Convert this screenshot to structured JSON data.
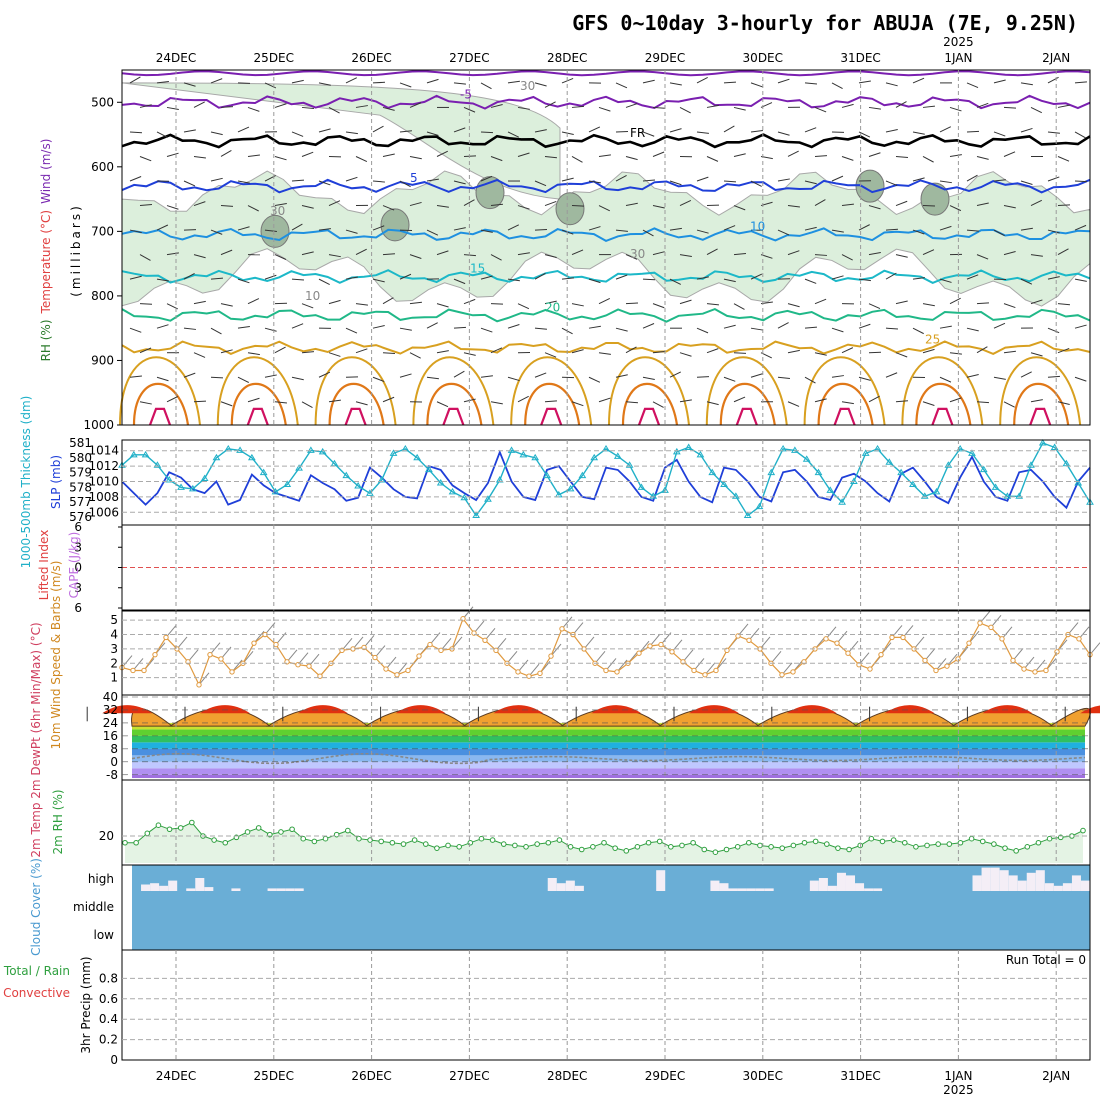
{
  "title": "GFS 0~10day 3-hourly for ABUJA (7E, 9.25N)",
  "year_label": "2025",
  "colors": {
    "rh_fill": "#dcefdc",
    "rh_dark": "#9fb89f",
    "rh_contour": "#a8a8a8",
    "freezing": "#000000",
    "t_neg5": "#7a1fb0",
    "t_5": "#1f3fd8",
    "t_10": "#1e90e0",
    "t_15": "#1cb8c8",
    "t_20": "#20b888",
    "t_25": "#d8a020",
    "t_30": "#e07818",
    "t_35": "#d01060",
    "slp": "#1f3fd8",
    "thickness": "#20b0c8",
    "wind_line": "#e09a40",
    "rh2m": "#30a040",
    "cloud_bg": "#6aaed6",
    "dewpoint": "#888888"
  },
  "chart_data": [
    {
      "id": "upper-air",
      "type": "contour",
      "ylabel_parts": [
        "RH (%)",
        "Temperature (°C)",
        "Wind (m/s)"
      ],
      "axis_title": "(millibars)",
      "ylim": [
        1000,
        450
      ],
      "yticks": [
        500,
        600,
        700,
        800,
        900,
        1000
      ],
      "days": [
        "24DEC",
        "25DEC",
        "26DEC",
        "27DEC",
        "28DEC",
        "29DEC",
        "30DEC",
        "31DEC",
        "1JAN",
        "2JAN"
      ],
      "isotherms": [
        {
          "value": -5,
          "label": "-5",
          "level_mb": 500
        },
        {
          "value": 0,
          "label": "FR",
          "level_mb": 560
        },
        {
          "value": 5,
          "label": "5",
          "level_mb": 630
        },
        {
          "value": 10,
          "label": "10",
          "level_mb": 705
        },
        {
          "value": 15,
          "label": "15",
          "level_mb": 770
        },
        {
          "value": 20,
          "label": "20",
          "level_mb": 830
        },
        {
          "value": 25,
          "label": "25",
          "level_mb": 880
        }
      ],
      "rh_labels": [
        "10",
        "30"
      ]
    },
    {
      "id": "slp-thickness",
      "type": "line",
      "ylabel_left": "1000-500mb Thickness (dm)",
      "ylabel_right": "SLP (mb)",
      "left_ticks": [
        576,
        577,
        578,
        579,
        580,
        581
      ],
      "right_ticks": [
        1006,
        1008,
        1010,
        1012,
        1014
      ],
      "series": [
        {
          "name": "SLP (mb)",
          "values": [
            1010,
            1008.5,
            1007,
            1008.5,
            1011.2,
            1010.5,
            1009,
            1008.5,
            1010,
            1007,
            1007.6,
            1010.9,
            1009.5,
            1008.5,
            1008,
            1007.5,
            1010.8,
            1009.8,
            1009,
            1007.5,
            1007.9,
            1011.8,
            1010.5,
            1009,
            1008,
            1007.8,
            1012,
            1011.5,
            1009.5,
            1008.5,
            1007.6,
            1009.8,
            1013.8,
            1010,
            1008,
            1007.6,
            1011.5,
            1012,
            1010,
            1008,
            1007.7,
            1011.8,
            1011.5,
            1010,
            1008,
            1007.5,
            1011.8,
            1012.8,
            1010,
            1008,
            1007.3,
            1011.8,
            1011.5,
            1010,
            1008,
            1007.4,
            1011.2,
            1011.5,
            1010,
            1008,
            1007.6,
            1010.5,
            1011,
            1010,
            1008.5,
            1007.4,
            1011,
            1011.8,
            1010,
            1008,
            1007.2,
            1010.5,
            1013.2,
            1010,
            1008,
            1007.5,
            1011.2,
            1011.5,
            1010,
            1008,
            1006.6,
            1010,
            1011.8
          ]
        },
        {
          "name": "1000-500mb Thickness (dm)",
          "values": [
            579.5,
            580.2,
            580.2,
            579.5,
            578.5,
            578,
            577.9,
            578.6,
            580,
            580.6,
            580.5,
            580,
            579,
            577.7,
            578.2,
            579.3,
            580.5,
            580.4,
            579.6,
            578.8,
            578.1,
            577.6,
            578.5,
            580.3,
            580.6,
            580,
            579.2,
            578.3,
            577.7,
            577.3,
            576.1,
            577.2,
            578.5,
            580.5,
            580.2,
            580,
            578.8,
            577.5,
            577.9,
            578.8,
            580,
            580.6,
            580.1,
            579.5,
            578,
            577.4,
            577.8,
            580.4,
            580.7,
            580.2,
            579,
            578.2,
            577.4,
            576.1,
            576.7,
            579,
            580.6,
            580.5,
            579.9,
            579,
            577.8,
            577,
            578.4,
            580.3,
            580.6,
            579.7,
            579,
            578.2,
            577.4,
            577.7,
            579.5,
            580.6,
            580.3,
            579.2,
            578,
            577.4,
            577.4,
            579.5,
            581,
            580.7,
            579.6,
            578.3,
            577
          ]
        }
      ]
    },
    {
      "id": "cape-li",
      "type": "line",
      "ylabel_left": "Lifted Index",
      "ylabel_right": "CAPE (J/kg)",
      "yticks": [
        -6,
        -3,
        0,
        3,
        6
      ],
      "tick_labels": [
        "6",
        "3",
        "0",
        "3",
        "6"
      ],
      "ylim": [
        -6,
        6
      ]
    },
    {
      "id": "wind10m",
      "type": "line",
      "ylabel": "10m Wind Speed & Barbs (m/s)",
      "yticks": [
        1,
        2,
        3,
        4,
        5
      ],
      "ylim": [
        0,
        5.5
      ],
      "series": [
        {
          "name": "10m Wind Speed",
          "values": [
            1.7,
            1.5,
            1.5,
            2.6,
            3.8,
            3,
            2.1,
            0.5,
            2.6,
            2.3,
            1.4,
            2,
            3.4,
            4,
            3.3,
            2.1,
            1.9,
            1.8,
            1.1,
            2,
            2.9,
            3,
            3.1,
            2.4,
            1.6,
            1.2,
            1.5,
            2.5,
            3.3,
            2.9,
            3,
            5.1,
            4.1,
            3.6,
            2.9,
            2,
            1.4,
            1.1,
            1.3,
            2.5,
            4.4,
            4,
            3,
            2,
            1.5,
            1.4,
            2,
            2.7,
            3.2,
            3.3,
            2.8,
            2.1,
            1.5,
            1.2,
            1.5,
            2.9,
            3.9,
            3.6,
            3,
            2,
            1.2,
            1.4,
            2.1,
            3,
            3.7,
            3.4,
            2.7,
            1.9,
            1.6,
            2.6,
            3.8,
            3.8,
            3,
            2.2,
            1.5,
            1.8,
            2.3,
            3.4,
            4.8,
            4.5,
            3.7,
            2.2,
            1.6,
            1.4,
            1.5,
            2.8,
            4,
            3.7,
            2.6
          ]
        }
      ]
    },
    {
      "id": "temp2m",
      "type": "area",
      "ylabel": "2m Temp 2m DewPt (6hr Min/Max) (°C)",
      "yticks": [
        -8,
        0,
        8,
        16,
        24,
        32,
        40
      ],
      "tick_labels": [
        "-8",
        "0",
        "8",
        "16",
        "24",
        "32",
        "40"
      ],
      "ylim": [
        -10,
        40
      ],
      "daily_max_c": 36,
      "daily_min_c": 22
    },
    {
      "id": "rh2m",
      "type": "area",
      "ylabel": "2m RH (%)",
      "yticks": [
        20
      ],
      "ylim": [
        0,
        60
      ],
      "series": [
        {
          "name": "2m RH (%)",
          "values": [
            15,
            15,
            22,
            28,
            25,
            26,
            30,
            20,
            17,
            15,
            19,
            23,
            26,
            21,
            23,
            25,
            18,
            16,
            18,
            21,
            24,
            18,
            17,
            16,
            15,
            14,
            17,
            14,
            11,
            13,
            12,
            15,
            18,
            17,
            14,
            13,
            12,
            14,
            15,
            17,
            12,
            10,
            12,
            15,
            11,
            9,
            12,
            15,
            16,
            12,
            13,
            15,
            10,
            8,
            10,
            12,
            15,
            13,
            12,
            11,
            13,
            15,
            16,
            14,
            11,
            10,
            13,
            18,
            16,
            17,
            15,
            12,
            13,
            14,
            14,
            15,
            18,
            16,
            14,
            11,
            9,
            12,
            15,
            18,
            19,
            20,
            24
          ]
        }
      ]
    },
    {
      "id": "cloud",
      "type": "bar",
      "ylabel": "Cloud Cover (%)",
      "levels": [
        "high",
        "middle",
        "low"
      ],
      "high_values": [
        0,
        25,
        30,
        20,
        40,
        0,
        10,
        50,
        15,
        0,
        0,
        10,
        0,
        0,
        0,
        10,
        10,
        10,
        10,
        0,
        0,
        0,
        0,
        0,
        0,
        0,
        0,
        0,
        0,
        0,
        0,
        0,
        0,
        0,
        0,
        0,
        0,
        0,
        0,
        0,
        0,
        0,
        0,
        0,
        0,
        0,
        50,
        30,
        40,
        20,
        0,
        0,
        0,
        0,
        0,
        0,
        0,
        0,
        80,
        0,
        0,
        0,
        0,
        0,
        40,
        30,
        10,
        10,
        10,
        10,
        10,
        0,
        0,
        0,
        0,
        40,
        50,
        20,
        70,
        60,
        30,
        10,
        10,
        0,
        0,
        0,
        0,
        0,
        0,
        0,
        0,
        0,
        0,
        60,
        90,
        90,
        80,
        60,
        40,
        70,
        80,
        30,
        20,
        30,
        60,
        40
      ]
    },
    {
      "id": "precip",
      "type": "bar",
      "ylabel_parts": [
        "Total / Rain",
        "Convective"
      ],
      "ylabel_right": "3hr Precip (mm)",
      "yticks": [
        0,
        0.2,
        0.4,
        0.6,
        0.8
      ],
      "ylim": [
        0,
        1
      ],
      "run_total": "Run Total = 0"
    }
  ]
}
